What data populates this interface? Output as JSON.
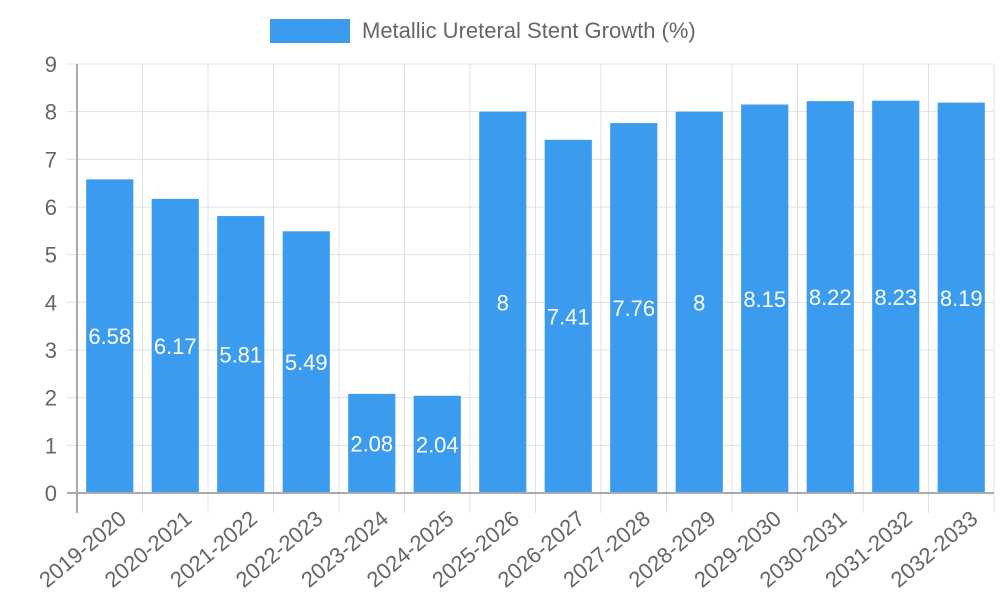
{
  "legend": {
    "label": "Metallic Ureteral Stent Growth (%)"
  },
  "colors": {
    "bar": "#3a9bef",
    "grid": "#e0e0e0",
    "axis": "#aaaaaa",
    "tick_text": "#666666",
    "value_label": "#ffffff"
  },
  "chart_data": {
    "type": "bar",
    "title": "",
    "xlabel": "",
    "ylabel": "",
    "ylim": [
      0,
      9
    ],
    "yticks": [
      0,
      1,
      2,
      3,
      4,
      5,
      6,
      7,
      8,
      9
    ],
    "grid": true,
    "legend_position": "top",
    "categories": [
      "2019-2020",
      "2020-2021",
      "2021-2022",
      "2022-2023",
      "2023-2024",
      "2024-2025",
      "2025-2026",
      "2026-2027",
      "2027-2028",
      "2028-2029",
      "2029-2030",
      "2030-2031",
      "2031-2032",
      "2032-2033"
    ],
    "series": [
      {
        "name": "Metallic Ureteral Stent Growth (%)",
        "values": [
          6.58,
          6.17,
          5.81,
          5.49,
          2.08,
          2.04,
          8,
          7.41,
          7.76,
          8,
          8.15,
          8.22,
          8.23,
          8.19
        ]
      }
    ]
  }
}
